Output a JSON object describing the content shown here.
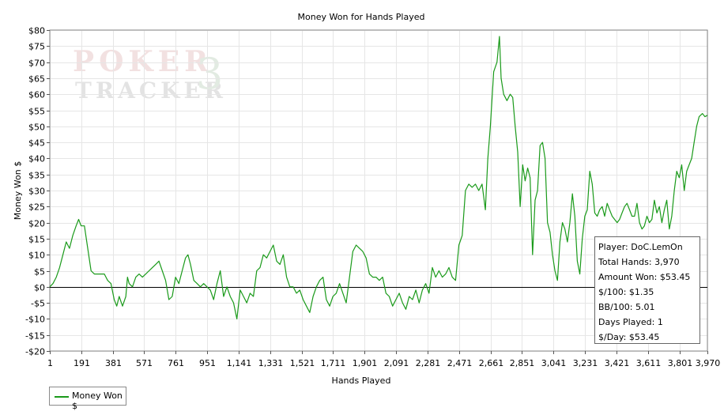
{
  "chart_data": {
    "type": "line",
    "title": "Money Won for Hands Played",
    "xlabel": "Hands Played",
    "ylabel": "Money Won $",
    "xlim": [
      1,
      3970
    ],
    "ylim": [
      -20,
      80
    ],
    "x_ticks": [
      1,
      191,
      381,
      571,
      761,
      951,
      1141,
      1331,
      1521,
      1711,
      1901,
      2091,
      2281,
      2471,
      2661,
      2851,
      3041,
      3231,
      3421,
      3611,
      3801,
      3970
    ],
    "x_tick_labels": [
      "1",
      "191",
      "381",
      "571",
      "761",
      "951",
      "1,141",
      "1,331",
      "1,521",
      "1,711",
      "1,901",
      "2,091",
      "2,281",
      "2,471",
      "2,661",
      "2,851",
      "3,041",
      "3,231",
      "3,421",
      "3,611",
      "3,801",
      "3,970"
    ],
    "y_ticks": [
      -20,
      -15,
      -10,
      -5,
      0,
      5,
      10,
      15,
      20,
      25,
      30,
      35,
      40,
      45,
      50,
      55,
      60,
      65,
      70,
      75,
      80
    ],
    "y_tick_labels": [
      "-$20",
      "-$15",
      "-$10",
      "-$5",
      "$0",
      "$5",
      "$10",
      "$15",
      "$20",
      "$25",
      "$30",
      "$35",
      "$40",
      "$45",
      "$50",
      "$55",
      "$60",
      "$65",
      "$70",
      "$75",
      "$80"
    ],
    "grid": true,
    "legend_position": "bottom-left",
    "series": [
      {
        "name": "Money Won $",
        "color": "#1a9a1a",
        "points": [
          [
            1,
            0
          ],
          [
            20,
            1
          ],
          [
            40,
            3
          ],
          [
            60,
            6
          ],
          [
            80,
            10
          ],
          [
            100,
            14
          ],
          [
            120,
            12
          ],
          [
            140,
            16
          ],
          [
            160,
            19
          ],
          [
            175,
            21
          ],
          [
            190,
            19
          ],
          [
            210,
            19
          ],
          [
            230,
            12
          ],
          [
            250,
            5
          ],
          [
            270,
            4
          ],
          [
            290,
            4
          ],
          [
            310,
            4
          ],
          [
            330,
            4
          ],
          [
            350,
            2
          ],
          [
            370,
            1
          ],
          [
            390,
            -4
          ],
          [
            405,
            -6
          ],
          [
            420,
            -3
          ],
          [
            440,
            -6
          ],
          [
            460,
            -3
          ],
          [
            470,
            3
          ],
          [
            480,
            1
          ],
          [
            500,
            0
          ],
          [
            520,
            3
          ],
          [
            540,
            4
          ],
          [
            560,
            3
          ],
          [
            580,
            4
          ],
          [
            600,
            5
          ],
          [
            620,
            6
          ],
          [
            640,
            7
          ],
          [
            660,
            8
          ],
          [
            680,
            5
          ],
          [
            700,
            2
          ],
          [
            720,
            -4
          ],
          [
            740,
            -3
          ],
          [
            760,
            3
          ],
          [
            780,
            1
          ],
          [
            800,
            5
          ],
          [
            820,
            9
          ],
          [
            835,
            10
          ],
          [
            850,
            7
          ],
          [
            870,
            2
          ],
          [
            890,
            1
          ],
          [
            910,
            0
          ],
          [
            930,
            1
          ],
          [
            950,
            0
          ],
          [
            970,
            -1
          ],
          [
            990,
            -4
          ],
          [
            1010,
            1
          ],
          [
            1030,
            5
          ],
          [
            1050,
            -3
          ],
          [
            1070,
            0
          ],
          [
            1090,
            -3
          ],
          [
            1110,
            -5
          ],
          [
            1130,
            -10
          ],
          [
            1150,
            -1
          ],
          [
            1170,
            -3
          ],
          [
            1190,
            -5
          ],
          [
            1210,
            -2
          ],
          [
            1230,
            -3
          ],
          [
            1250,
            5
          ],
          [
            1270,
            6
          ],
          [
            1290,
            10
          ],
          [
            1310,
            9
          ],
          [
            1330,
            11
          ],
          [
            1350,
            13
          ],
          [
            1370,
            8
          ],
          [
            1390,
            7
          ],
          [
            1410,
            10
          ],
          [
            1430,
            3
          ],
          [
            1450,
            0
          ],
          [
            1470,
            0
          ],
          [
            1490,
            -2
          ],
          [
            1510,
            -1
          ],
          [
            1530,
            -4
          ],
          [
            1550,
            -6
          ],
          [
            1570,
            -8
          ],
          [
            1590,
            -3
          ],
          [
            1610,
            0
          ],
          [
            1630,
            2
          ],
          [
            1650,
            3
          ],
          [
            1670,
            -4
          ],
          [
            1690,
            -6
          ],
          [
            1710,
            -3
          ],
          [
            1730,
            -2
          ],
          [
            1750,
            1
          ],
          [
            1770,
            -2
          ],
          [
            1790,
            -5
          ],
          [
            1810,
            3
          ],
          [
            1830,
            11
          ],
          [
            1850,
            13
          ],
          [
            1870,
            12
          ],
          [
            1890,
            11
          ],
          [
            1910,
            9
          ],
          [
            1930,
            4
          ],
          [
            1950,
            3
          ],
          [
            1970,
            3
          ],
          [
            1990,
            2
          ],
          [
            2010,
            3
          ],
          [
            2030,
            -2
          ],
          [
            2050,
            -3
          ],
          [
            2070,
            -6
          ],
          [
            2090,
            -4
          ],
          [
            2110,
            -2
          ],
          [
            2130,
            -5
          ],
          [
            2150,
            -7
          ],
          [
            2170,
            -3
          ],
          [
            2190,
            -4
          ],
          [
            2210,
            -1
          ],
          [
            2230,
            -5
          ],
          [
            2250,
            -1
          ],
          [
            2270,
            1
          ],
          [
            2290,
            -2
          ],
          [
            2310,
            6
          ],
          [
            2330,
            3
          ],
          [
            2350,
            5
          ],
          [
            2370,
            3
          ],
          [
            2390,
            4
          ],
          [
            2410,
            6
          ],
          [
            2430,
            3
          ],
          [
            2450,
            2
          ],
          [
            2470,
            13
          ],
          [
            2490,
            16
          ],
          [
            2510,
            30
          ],
          [
            2530,
            32
          ],
          [
            2550,
            31
          ],
          [
            2570,
            32
          ],
          [
            2590,
            30
          ],
          [
            2610,
            32
          ],
          [
            2630,
            24
          ],
          [
            2645,
            40
          ],
          [
            2660,
            50
          ],
          [
            2680,
            67
          ],
          [
            2700,
            70
          ],
          [
            2715,
            78
          ],
          [
            2725,
            65
          ],
          [
            2740,
            60
          ],
          [
            2760,
            58
          ],
          [
            2780,
            60
          ],
          [
            2795,
            59
          ],
          [
            2810,
            50
          ],
          [
            2825,
            42
          ],
          [
            2840,
            25
          ],
          [
            2855,
            38
          ],
          [
            2870,
            33
          ],
          [
            2885,
            37
          ],
          [
            2900,
            34
          ],
          [
            2915,
            10
          ],
          [
            2930,
            27
          ],
          [
            2945,
            30
          ],
          [
            2960,
            44
          ],
          [
            2975,
            45
          ],
          [
            2990,
            40
          ],
          [
            3005,
            20
          ],
          [
            3020,
            17
          ],
          [
            3035,
            10
          ],
          [
            3050,
            5
          ],
          [
            3065,
            2
          ],
          [
            3080,
            14
          ],
          [
            3095,
            20
          ],
          [
            3110,
            18
          ],
          [
            3125,
            14
          ],
          [
            3140,
            20
          ],
          [
            3155,
            29
          ],
          [
            3170,
            22
          ],
          [
            3185,
            8
          ],
          [
            3200,
            4
          ],
          [
            3215,
            15
          ],
          [
            3230,
            22
          ],
          [
            3245,
            24
          ],
          [
            3260,
            36
          ],
          [
            3275,
            32
          ],
          [
            3290,
            23
          ],
          [
            3305,
            22
          ],
          [
            3320,
            24
          ],
          [
            3335,
            25
          ],
          [
            3350,
            22
          ],
          [
            3365,
            26
          ],
          [
            3380,
            24
          ],
          [
            3395,
            22
          ],
          [
            3410,
            21
          ],
          [
            3425,
            20
          ],
          [
            3440,
            21
          ],
          [
            3455,
            23
          ],
          [
            3470,
            25
          ],
          [
            3485,
            26
          ],
          [
            3500,
            24
          ],
          [
            3515,
            22
          ],
          [
            3530,
            22
          ],
          [
            3545,
            26
          ],
          [
            3560,
            20
          ],
          [
            3575,
            18
          ],
          [
            3590,
            19
          ],
          [
            3605,
            22
          ],
          [
            3620,
            20
          ],
          [
            3635,
            21
          ],
          [
            3650,
            27
          ],
          [
            3665,
            23
          ],
          [
            3680,
            25
          ],
          [
            3695,
            20
          ],
          [
            3710,
            24
          ],
          [
            3725,
            27
          ],
          [
            3740,
            18
          ],
          [
            3755,
            22
          ],
          [
            3770,
            30
          ],
          [
            3785,
            36
          ],
          [
            3800,
            34
          ],
          [
            3815,
            38
          ],
          [
            3830,
            30
          ],
          [
            3845,
            36
          ],
          [
            3860,
            38
          ],
          [
            3875,
            40
          ],
          [
            3890,
            45
          ],
          [
            3905,
            50
          ],
          [
            3920,
            53
          ],
          [
            3940,
            54
          ],
          [
            3955,
            53
          ],
          [
            3970,
            53.45
          ]
        ]
      }
    ],
    "tooltip": {
      "player": "Player: DoC.LemOn",
      "total_hands": "Total Hands: 3,970",
      "amount_won": "Amount Won: $53.45",
      "per_100": "$/100: $1.35",
      "bb_100": "BB/100: 5.01",
      "days_played": "Days Played: 1",
      "per_day": "$/Day: $53.45"
    }
  },
  "watermark": {
    "text_top": "POKER",
    "text_bottom": "TRACKER",
    "badge": "3"
  },
  "legend": {
    "label": "Money Won $"
  }
}
